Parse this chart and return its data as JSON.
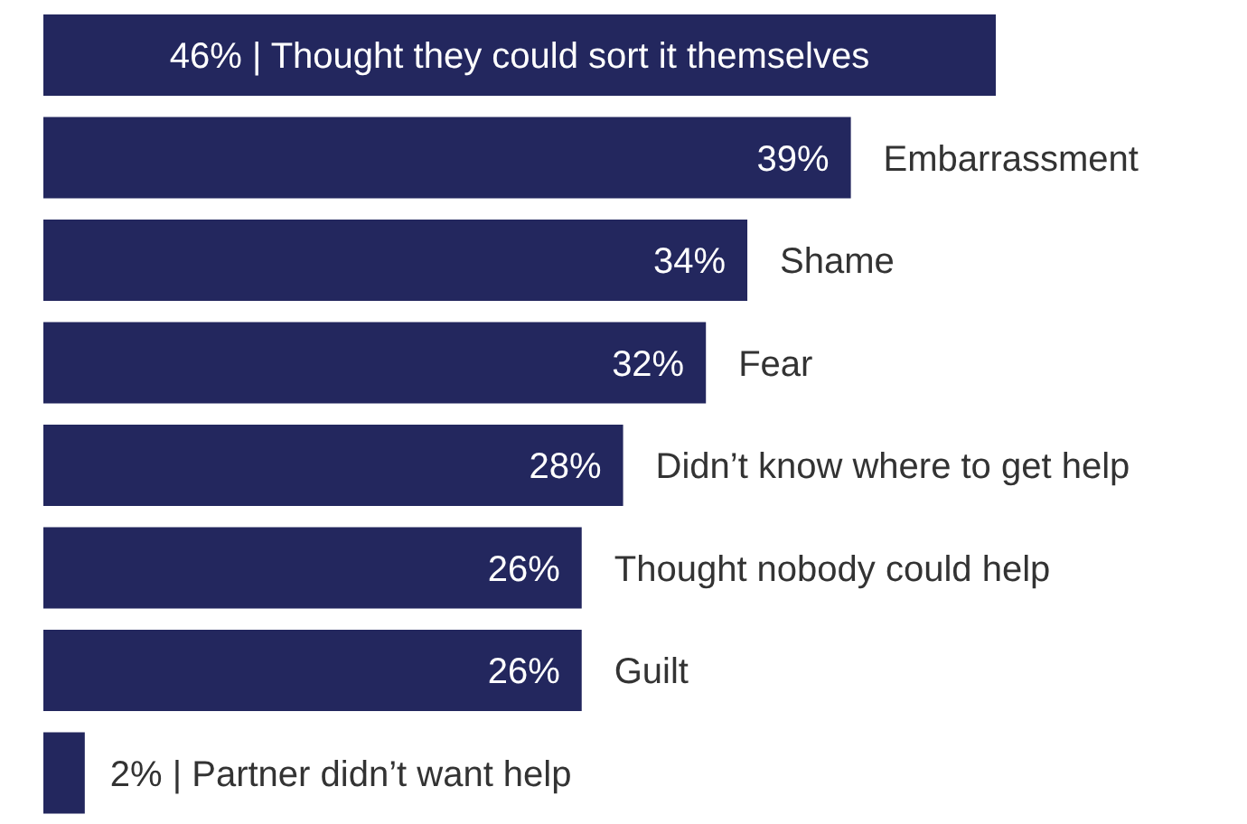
{
  "chart_data": {
    "type": "bar",
    "orientation": "horizontal",
    "categories": [
      "Thought they could sort it themselves",
      "Embarrassment",
      "Shame",
      "Fear",
      "Didn’t know where to get help",
      "Thought nobody could help",
      "Guilt",
      "Partner didn’t want help"
    ],
    "values": [
      46,
      39,
      34,
      32,
      28,
      26,
      26,
      2
    ],
    "value_labels": [
      "46% |",
      "39%",
      "34%",
      "32%",
      "28%",
      "26%",
      "26%",
      "2% |"
    ],
    "color": "#23275e"
  }
}
